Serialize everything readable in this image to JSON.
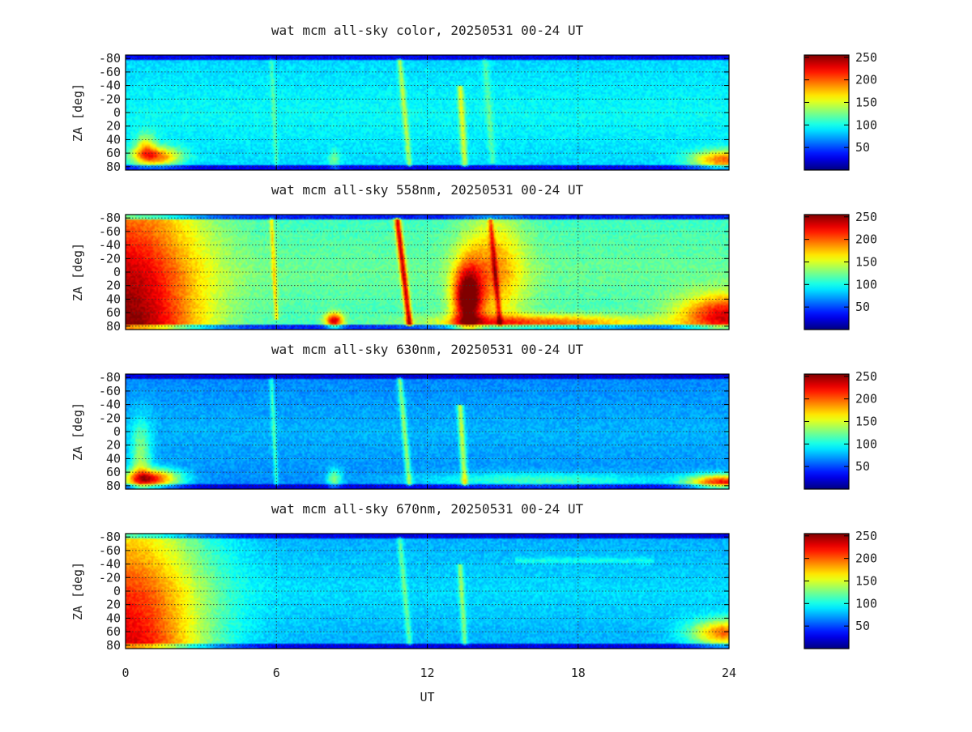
{
  "chart_data": [
    {
      "type": "heatmap",
      "title": "wat mcm all-sky color, 20250531 00-24 UT",
      "xlabel": "",
      "ylabel": "ZA [deg]",
      "xlim": [
        0,
        24
      ],
      "ylim": [
        -85,
        85
      ],
      "y_ticks": [
        -80,
        -60,
        -40,
        -20,
        0,
        20,
        40,
        60,
        80
      ],
      "y_tick_labels": [
        "-80",
        "-60",
        "-40",
        "-20",
        "0",
        "20",
        "40",
        "60",
        "80"
      ],
      "grid": true,
      "colorbar": {
        "range": [
          0,
          255
        ],
        "ticks": [
          50,
          100,
          150,
          200,
          250
        ],
        "tick_labels": [
          "50",
          "100",
          "150",
          "200",
          "250"
        ],
        "colormap": "jet"
      },
      "base_intensity": 85,
      "features": [
        {
          "kind": "blob",
          "t": 1.2,
          "za": 65,
          "st": 0.7,
          "sz": 10,
          "amp": 110
        },
        {
          "kind": "blob",
          "t": 0.8,
          "za": 50,
          "st": 0.3,
          "sz": 14,
          "amp": 60
        },
        {
          "kind": "blob",
          "t": 23.8,
          "za": 70,
          "st": 0.9,
          "sz": 10,
          "amp": 110
        },
        {
          "kind": "streak",
          "t": 10.9,
          "za0": -80,
          "za1": 80,
          "t1": 11.3,
          "w": 0.08,
          "amp": 50
        },
        {
          "kind": "streak",
          "t": 13.3,
          "za0": -40,
          "za1": 80,
          "t1": 13.5,
          "w": 0.09,
          "amp": 60
        },
        {
          "kind": "streak",
          "t": 14.3,
          "za0": -80,
          "za1": 75,
          "t1": 14.6,
          "w": 0.1,
          "amp": 25
        },
        {
          "kind": "streak",
          "t": 5.8,
          "za0": -80,
          "za1": 80,
          "t1": 6.0,
          "w": 0.06,
          "amp": 25
        },
        {
          "kind": "blob",
          "t": 8.3,
          "za": 70,
          "st": 0.15,
          "sz": 10,
          "amp": 40
        }
      ]
    },
    {
      "type": "heatmap",
      "title": "wat mcm all-sky 558nm, 20250531 00-24 UT",
      "xlabel": "",
      "ylabel": "ZA [deg]",
      "xlim": [
        0,
        24
      ],
      "ylim": [
        -85,
        85
      ],
      "y_ticks": [
        -80,
        -60,
        -40,
        -20,
        0,
        20,
        40,
        60,
        80
      ],
      "y_tick_labels": [
        "-80",
        "-60",
        "-40",
        "-20",
        "0",
        "20",
        "40",
        "60",
        "80"
      ],
      "grid": true,
      "colorbar": {
        "range": [
          0,
          255
        ],
        "ticks": [
          50,
          100,
          150,
          200,
          250
        ],
        "tick_labels": [
          "50",
          "100",
          "150",
          "200",
          "250"
        ],
        "colormap": "jet"
      },
      "base_intensity": 110,
      "features": [
        {
          "kind": "twilight",
          "t": 0.0,
          "width": 3.0,
          "amp": 150
        },
        {
          "kind": "blob",
          "t": 23.9,
          "za": 65,
          "st": 1.3,
          "sz": 22,
          "amp": 120
        },
        {
          "kind": "streak",
          "t": 10.8,
          "za0": -80,
          "za1": 80,
          "t1": 11.3,
          "w": 0.09,
          "amp": 120
        },
        {
          "kind": "blob",
          "t": 8.3,
          "za": 72,
          "st": 0.25,
          "sz": 8,
          "amp": 120
        },
        {
          "kind": "streak",
          "t": 5.8,
          "za0": -80,
          "za1": 70,
          "t1": 6.0,
          "w": 0.06,
          "amp": 50
        },
        {
          "kind": "blob",
          "t": 13.6,
          "za": 40,
          "st": 0.4,
          "sz": 35,
          "amp": 140
        },
        {
          "kind": "blob",
          "t": 14.6,
          "za": 0,
          "st": 0.9,
          "sz": 60,
          "amp": 70
        },
        {
          "kind": "blob",
          "t": 16.5,
          "za": 75,
          "st": 3.0,
          "sz": 8,
          "amp": 90
        },
        {
          "kind": "streak",
          "t": 14.5,
          "za0": -80,
          "za1": 80,
          "t1": 14.9,
          "w": 0.07,
          "amp": 60
        }
      ]
    },
    {
      "type": "heatmap",
      "title": "wat mcm all-sky 630nm, 20250531 00-24 UT",
      "xlabel": "",
      "ylabel": "ZA [deg]",
      "xlim": [
        0,
        24
      ],
      "ylim": [
        -85,
        85
      ],
      "y_ticks": [
        -80,
        -60,
        -40,
        -20,
        0,
        20,
        40,
        60,
        80
      ],
      "y_tick_labels": [
        "-80",
        "-60",
        "-40",
        "-20",
        "0",
        "20",
        "40",
        "60",
        "80"
      ],
      "grid": true,
      "colorbar": {
        "range": [
          0,
          255
        ],
        "ticks": [
          50,
          100,
          150,
          200,
          250
        ],
        "tick_labels": [
          "50",
          "100",
          "150",
          "200",
          "250"
        ],
        "colormap": "jet"
      },
      "base_intensity": 65,
      "features": [
        {
          "kind": "blob",
          "t": 1.0,
          "za": 70,
          "st": 0.8,
          "sz": 10,
          "amp": 150
        },
        {
          "kind": "blob",
          "t": 0.6,
          "za": 40,
          "st": 0.3,
          "sz": 40,
          "amp": 60
        },
        {
          "kind": "blob",
          "t": 23.8,
          "za": 75,
          "st": 1.0,
          "sz": 8,
          "amp": 150
        },
        {
          "kind": "streak",
          "t": 10.9,
          "za0": -80,
          "za1": 80,
          "t1": 11.3,
          "w": 0.08,
          "amp": 60
        },
        {
          "kind": "streak",
          "t": 13.3,
          "za0": -40,
          "za1": 80,
          "t1": 13.5,
          "w": 0.09,
          "amp": 70
        },
        {
          "kind": "streak",
          "t": 5.8,
          "za0": -80,
          "za1": 80,
          "t1": 6.0,
          "w": 0.06,
          "amp": 40
        },
        {
          "kind": "blob",
          "t": 8.3,
          "za": 70,
          "st": 0.2,
          "sz": 10,
          "amp": 60
        },
        {
          "kind": "blob",
          "t": 16.5,
          "za": 72,
          "st": 3.5,
          "sz": 8,
          "amp": 45
        }
      ]
    },
    {
      "type": "heatmap",
      "title": "wat mcm all-sky 670nm, 20250531 00-24 UT",
      "xlabel": "UT",
      "ylabel": "ZA [deg]",
      "xlim": [
        0,
        24
      ],
      "ylim": [
        -85,
        85
      ],
      "x_ticks": [
        0,
        6,
        12,
        18,
        24
      ],
      "x_tick_labels": [
        "0",
        "6",
        "12",
        "18",
        "24"
      ],
      "y_ticks": [
        -80,
        -60,
        -40,
        -20,
        0,
        20,
        40,
        60,
        80
      ],
      "y_tick_labels": [
        "-80",
        "-60",
        "-40",
        "-20",
        "0",
        "20",
        "40",
        "60",
        "80"
      ],
      "grid": true,
      "colorbar": {
        "range": [
          0,
          255
        ],
        "ticks": [
          50,
          100,
          150,
          200,
          250
        ],
        "tick_labels": [
          "50",
          "100",
          "150",
          "200",
          "250"
        ],
        "colormap": "jet"
      },
      "base_intensity": 75,
      "features": [
        {
          "kind": "twilight",
          "t": 0.0,
          "width": 3.2,
          "amp": 160
        },
        {
          "kind": "blob",
          "t": 23.9,
          "za": 62,
          "st": 1.0,
          "sz": 14,
          "amp": 120
        },
        {
          "kind": "streak",
          "t": 10.9,
          "za0": -80,
          "za1": 80,
          "t1": 11.3,
          "w": 0.08,
          "amp": 40
        },
        {
          "kind": "streak",
          "t": 13.3,
          "za0": -40,
          "za1": 80,
          "t1": 13.5,
          "w": 0.08,
          "amp": 50
        },
        {
          "kind": "band",
          "za": -45,
          "t0": 15.5,
          "t1": 21.0,
          "w": 3,
          "amp": 20
        }
      ]
    }
  ]
}
